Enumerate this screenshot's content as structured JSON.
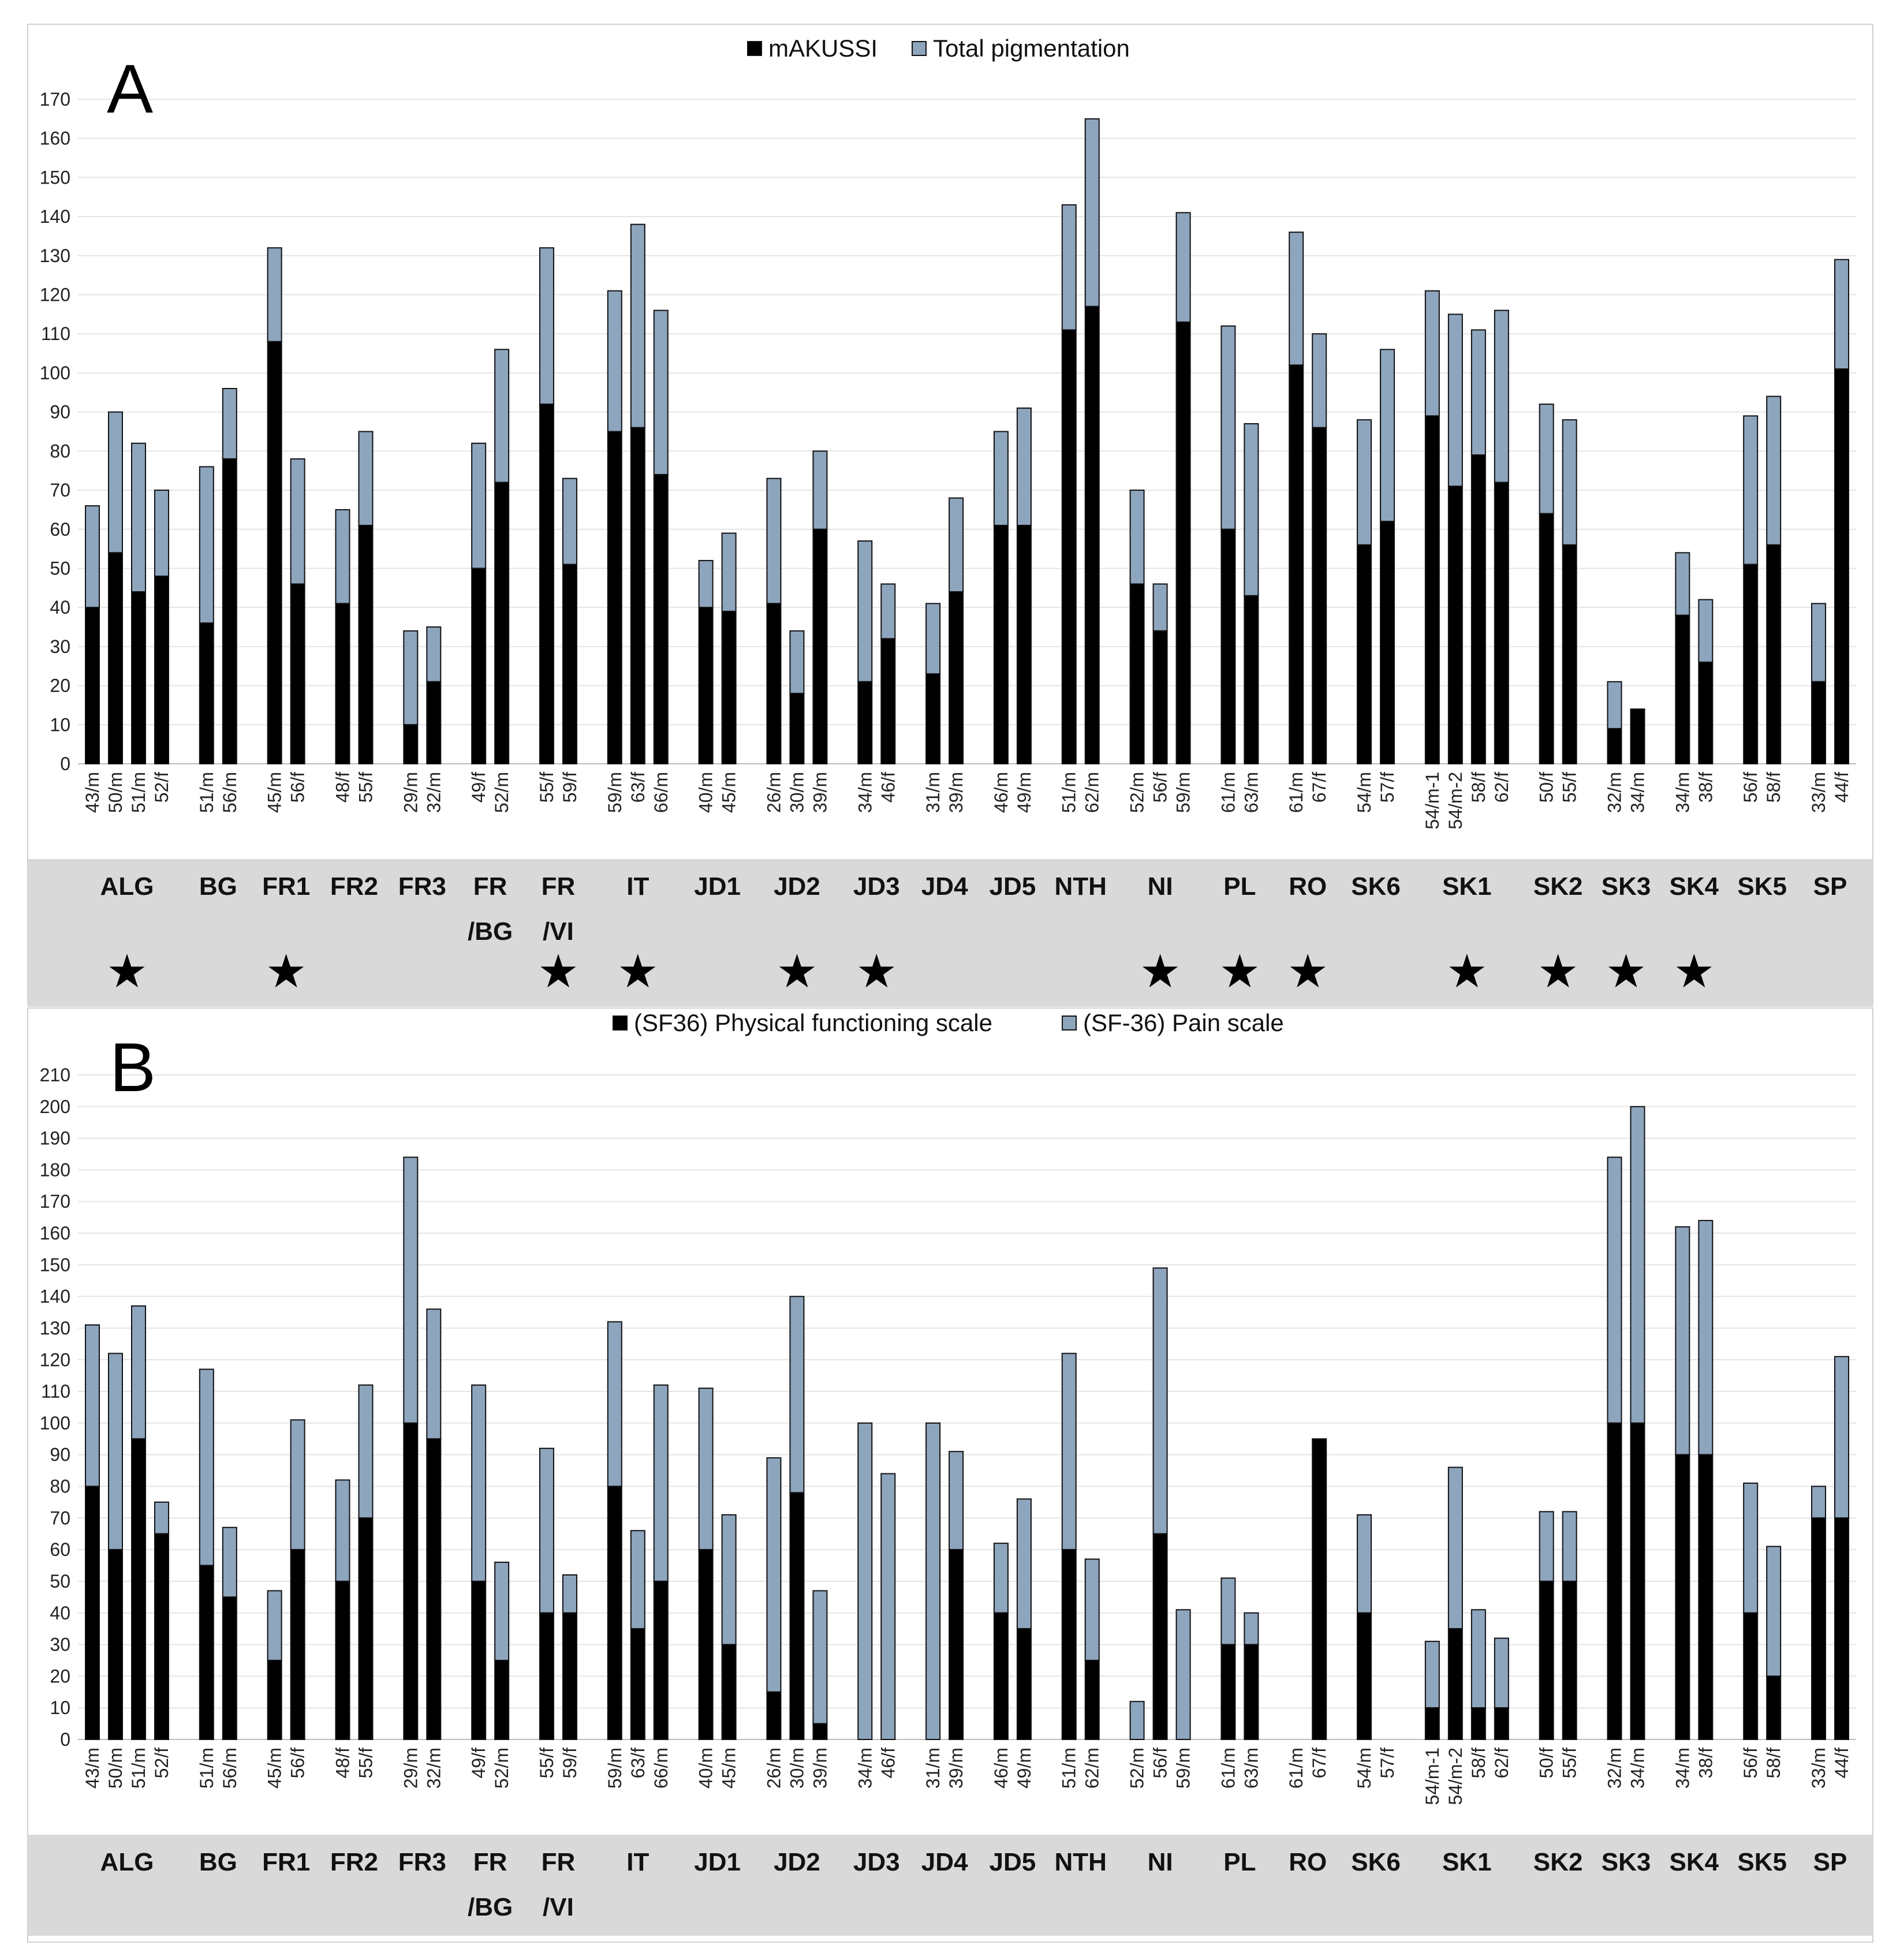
{
  "colors": {
    "dark": "#000000",
    "light": "#8EA5BE",
    "band": "#D9D9D9",
    "grid": "#E4E4E4"
  },
  "groups": [
    "ALG",
    "BG",
    "FR1",
    "FR2",
    "FR3",
    "FR /BG",
    "FR /VI",
    "IT",
    "JD1",
    "JD2",
    "JD3",
    "JD4",
    "JD5",
    "NTH",
    "NI",
    "PL",
    "RO",
    "SK6",
    "SK1",
    "SK2",
    "SK3",
    "SK4",
    "SK5",
    "SP"
  ],
  "chart_data": [
    {
      "type": "bar",
      "stacked": true,
      "panel_label": "A",
      "legend": [
        "mAKUSSI",
        "Total pigmentation"
      ],
      "ylim": [
        0,
        170
      ],
      "yticks": [
        0,
        10,
        20,
        30,
        40,
        50,
        60,
        70,
        80,
        90,
        100,
        110,
        120,
        130,
        140,
        150,
        160,
        170
      ],
      "starred_groups": [
        "ALG",
        "FR1",
        "FR /VI",
        "IT",
        "JD2",
        "JD3",
        "NI",
        "PL",
        "RO",
        "SK1",
        "SK2",
        "SK3",
        "SK4"
      ],
      "groups": [
        {
          "name": "ALG",
          "bars": [
            {
              "label": "43/m",
              "dark": 40,
              "total": 66
            },
            {
              "label": "50/m",
              "dark": 54,
              "total": 90
            },
            {
              "label": "51/m",
              "dark": 44,
              "total": 82
            },
            {
              "label": "52/f",
              "dark": 48,
              "total": 70
            }
          ]
        },
        {
          "name": "BG",
          "bars": [
            {
              "label": "51/m",
              "dark": 36,
              "total": 76
            },
            {
              "label": "56/m",
              "dark": 78,
              "total": 96
            }
          ]
        },
        {
          "name": "FR1",
          "bars": [
            {
              "label": "45/m",
              "dark": 108,
              "total": 132
            },
            {
              "label": "56/f",
              "dark": 46,
              "total": 78
            }
          ]
        },
        {
          "name": "FR2",
          "bars": [
            {
              "label": "48/f",
              "dark": 41,
              "total": 65
            },
            {
              "label": "55/f",
              "dark": 61,
              "total": 85
            }
          ]
        },
        {
          "name": "FR3",
          "bars": [
            {
              "label": "29/m",
              "dark": 10,
              "total": 34
            },
            {
              "label": "32/m",
              "dark": 21,
              "total": 35
            }
          ]
        },
        {
          "name": "FR /BG",
          "bars": [
            {
              "label": "49/f",
              "dark": 50,
              "total": 82
            },
            {
              "label": "52/m",
              "dark": 72,
              "total": 106
            }
          ]
        },
        {
          "name": "FR /VI",
          "bars": [
            {
              "label": "55/f",
              "dark": 92,
              "total": 132
            },
            {
              "label": "59/f",
              "dark": 51,
              "total": 73
            }
          ]
        },
        {
          "name": "IT",
          "bars": [
            {
              "label": "59/m",
              "dark": 85,
              "total": 121
            },
            {
              "label": "63/f",
              "dark": 86,
              "total": 138
            },
            {
              "label": "66/m",
              "dark": 74,
              "total": 116
            }
          ]
        },
        {
          "name": "JD1",
          "bars": [
            {
              "label": "40/m",
              "dark": 40,
              "total": 52
            },
            {
              "label": "45/m",
              "dark": 39,
              "total": 59
            }
          ]
        },
        {
          "name": "JD2",
          "bars": [
            {
              "label": "26/m",
              "dark": 41,
              "total": 73
            },
            {
              "label": "30/m",
              "dark": 18,
              "total": 34
            },
            {
              "label": "39/m",
              "dark": 60,
              "total": 80
            }
          ]
        },
        {
          "name": "JD3",
          "bars": [
            {
              "label": "34/m",
              "dark": 21,
              "total": 57
            },
            {
              "label": "46/f",
              "dark": 32,
              "total": 46
            }
          ]
        },
        {
          "name": "JD4",
          "bars": [
            {
              "label": "31/m",
              "dark": 23,
              "total": 41
            },
            {
              "label": "39/m",
              "dark": 44,
              "total": 68
            }
          ]
        },
        {
          "name": "JD5",
          "bars": [
            {
              "label": "46/m",
              "dark": 61,
              "total": 85
            },
            {
              "label": "49/m",
              "dark": 61,
              "total": 91
            }
          ]
        },
        {
          "name": "NTH",
          "bars": [
            {
              "label": "51/m",
              "dark": 111,
              "total": 143
            },
            {
              "label": "62/m",
              "dark": 117,
              "total": 165
            }
          ]
        },
        {
          "name": "NI",
          "bars": [
            {
              "label": "52/m",
              "dark": 46,
              "total": 70
            },
            {
              "label": "56/f",
              "dark": 34,
              "total": 46
            },
            {
              "label": "59/m",
              "dark": 113,
              "total": 141
            }
          ]
        },
        {
          "name": "PL",
          "bars": [
            {
              "label": "61/m",
              "dark": 60,
              "total": 112
            },
            {
              "label": "63/m",
              "dark": 43,
              "total": 87
            }
          ]
        },
        {
          "name": "RO",
          "bars": [
            {
              "label": "61/m",
              "dark": 102,
              "total": 136
            },
            {
              "label": "67/f",
              "dark": 86,
              "total": 110
            }
          ]
        },
        {
          "name": "SK6",
          "bars": [
            {
              "label": "54/m",
              "dark": 56,
              "total": 88
            },
            {
              "label": "57/f",
              "dark": 62,
              "total": 106
            }
          ]
        },
        {
          "name": "SK1",
          "bars": [
            {
              "label": "54/m-1",
              "dark": 89,
              "total": 121
            },
            {
              "label": "54/m-2",
              "dark": 71,
              "total": 115
            },
            {
              "label": "58/f",
              "dark": 79,
              "total": 111
            },
            {
              "label": "62/f",
              "dark": 72,
              "total": 116
            }
          ]
        },
        {
          "name": "SK2",
          "bars": [
            {
              "label": "50/f",
              "dark": 64,
              "total": 92
            },
            {
              "label": "55/f",
              "dark": 56,
              "total": 88
            }
          ]
        },
        {
          "name": "SK3",
          "bars": [
            {
              "label": "32/m",
              "dark": 9,
              "total": 21
            },
            {
              "label": "34/m",
              "dark": 14,
              "total": 14
            }
          ]
        },
        {
          "name": "SK4",
          "bars": [
            {
              "label": "34/m",
              "dark": 38,
              "total": 54
            },
            {
              "label": "38/f",
              "dark": 26,
              "total": 42
            }
          ]
        },
        {
          "name": "SK5",
          "bars": [
            {
              "label": "56/f",
              "dark": 51,
              "total": 89
            },
            {
              "label": "58/f",
              "dark": 56,
              "total": 94
            }
          ]
        },
        {
          "name": "SP",
          "bars": [
            {
              "label": "33/m",
              "dark": 21,
              "total": 41
            },
            {
              "label": "44/f",
              "dark": 101,
              "total": 129
            }
          ]
        }
      ]
    },
    {
      "type": "bar",
      "stacked": true,
      "panel_label": "B",
      "legend": [
        "(SF36) Physical functioning scale",
        "(SF-36) Pain scale"
      ],
      "ylim": [
        0,
        210
      ],
      "yticks": [
        0,
        10,
        20,
        30,
        40,
        50,
        60,
        70,
        80,
        90,
        100,
        110,
        120,
        130,
        140,
        150,
        160,
        170,
        180,
        190,
        200,
        210
      ],
      "starred_groups": [],
      "groups": [
        {
          "name": "ALG",
          "bars": [
            {
              "label": "43/m",
              "dark": 80,
              "total": 131
            },
            {
              "label": "50/m",
              "dark": 60,
              "total": 122
            },
            {
              "label": "51/m",
              "dark": 95,
              "total": 137
            },
            {
              "label": "52/f",
              "dark": 65,
              "total": 75
            }
          ]
        },
        {
          "name": "BG",
          "bars": [
            {
              "label": "51/m",
              "dark": 55,
              "total": 117
            },
            {
              "label": "56/m",
              "dark": 45,
              "total": 67
            }
          ]
        },
        {
          "name": "FR1",
          "bars": [
            {
              "label": "45/m",
              "dark": 25,
              "total": 47
            },
            {
              "label": "56/f",
              "dark": 60,
              "total": 101
            }
          ]
        },
        {
          "name": "FR2",
          "bars": [
            {
              "label": "48/f",
              "dark": 50,
              "total": 82
            },
            {
              "label": "55/f",
              "dark": 70,
              "total": 112
            }
          ]
        },
        {
          "name": "FR3",
          "bars": [
            {
              "label": "29/m",
              "dark": 100,
              "total": 184
            },
            {
              "label": "32/m",
              "dark": 95,
              "total": 136
            }
          ]
        },
        {
          "name": "FR /BG",
          "bars": [
            {
              "label": "49/f",
              "dark": 50,
              "total": 112
            },
            {
              "label": "52/m",
              "dark": 25,
              "total": 56
            }
          ]
        },
        {
          "name": "FR /VI",
          "bars": [
            {
              "label": "55/f",
              "dark": 40,
              "total": 92
            },
            {
              "label": "59/f",
              "dark": 40,
              "total": 52
            }
          ]
        },
        {
          "name": "IT",
          "bars": [
            {
              "label": "59/m",
              "dark": 80,
              "total": 132
            },
            {
              "label": "63/f",
              "dark": 35,
              "total": 66
            },
            {
              "label": "66/m",
              "dark": 50,
              "total": 112
            }
          ]
        },
        {
          "name": "JD1",
          "bars": [
            {
              "label": "40/m",
              "dark": 60,
              "total": 111
            },
            {
              "label": "45/m",
              "dark": 30,
              "total": 71
            }
          ]
        },
        {
          "name": "JD2",
          "bars": [
            {
              "label": "26/m",
              "dark": 15,
              "total": 89
            },
            {
              "label": "30/m",
              "dark": 78,
              "total": 140
            },
            {
              "label": "39/m",
              "dark": 5,
              "total": 47
            }
          ]
        },
        {
          "name": "JD3",
          "bars": [
            {
              "label": "34/m",
              "dark": 0,
              "total": 100
            },
            {
              "label": "46/f",
              "dark": 0,
              "total": 84
            }
          ]
        },
        {
          "name": "JD4",
          "bars": [
            {
              "label": "31/m",
              "dark": 0,
              "total": 100
            },
            {
              "label": "39/m",
              "dark": 60,
              "total": 91
            }
          ]
        },
        {
          "name": "JD5",
          "bars": [
            {
              "label": "46/m",
              "dark": 40,
              "total": 62
            },
            {
              "label": "49/m",
              "dark": 35,
              "total": 76
            }
          ]
        },
        {
          "name": "NTH",
          "bars": [
            {
              "label": "51/m",
              "dark": 60,
              "total": 122
            },
            {
              "label": "62/m",
              "dark": 25,
              "total": 57
            }
          ]
        },
        {
          "name": "NI",
          "bars": [
            {
              "label": "52/m",
              "dark": 0,
              "total": 12
            },
            {
              "label": "56/f",
              "dark": 65,
              "total": 149
            },
            {
              "label": "59/m",
              "dark": 0,
              "total": 41
            }
          ]
        },
        {
          "name": "PL",
          "bars": [
            {
              "label": "61/m",
              "dark": 30,
              "total": 51
            },
            {
              "label": "63/m",
              "dark": 30,
              "total": 40
            }
          ]
        },
        {
          "name": "RO",
          "bars": [
            {
              "label": "61/m",
              "dark": 0,
              "total": 0
            },
            {
              "label": "67/f",
              "dark": 95,
              "total": 95
            }
          ]
        },
        {
          "name": "SK6",
          "bars": [
            {
              "label": "54/m",
              "dark": 40,
              "total": 71
            },
            {
              "label": "57/f",
              "dark": 0,
              "total": 0
            }
          ]
        },
        {
          "name": "SK1",
          "bars": [
            {
              "label": "54/m-1",
              "dark": 10,
              "total": 31
            },
            {
              "label": "54/m-2",
              "dark": 35,
              "total": 86
            },
            {
              "label": "58/f",
              "dark": 10,
              "total": 41
            },
            {
              "label": "62/f",
              "dark": 10,
              "total": 32
            }
          ]
        },
        {
          "name": "SK2",
          "bars": [
            {
              "label": "50/f",
              "dark": 50,
              "total": 72
            },
            {
              "label": "55/f",
              "dark": 50,
              "total": 72
            }
          ]
        },
        {
          "name": "SK3",
          "bars": [
            {
              "label": "32/m",
              "dark": 100,
              "total": 184
            },
            {
              "label": "34/m",
              "dark": 100,
              "total": 200
            }
          ]
        },
        {
          "name": "SK4",
          "bars": [
            {
              "label": "34/m",
              "dark": 90,
              "total": 162
            },
            {
              "label": "38/f",
              "dark": 90,
              "total": 164
            }
          ]
        },
        {
          "name": "SK5",
          "bars": [
            {
              "label": "56/f",
              "dark": 40,
              "total": 81
            },
            {
              "label": "58/f",
              "dark": 20,
              "total": 61
            }
          ]
        },
        {
          "name": "SP",
          "bars": [
            {
              "label": "33/m",
              "dark": 70,
              "total": 80
            },
            {
              "label": "44/f",
              "dark": 70,
              "total": 121
            }
          ]
        }
      ]
    }
  ]
}
